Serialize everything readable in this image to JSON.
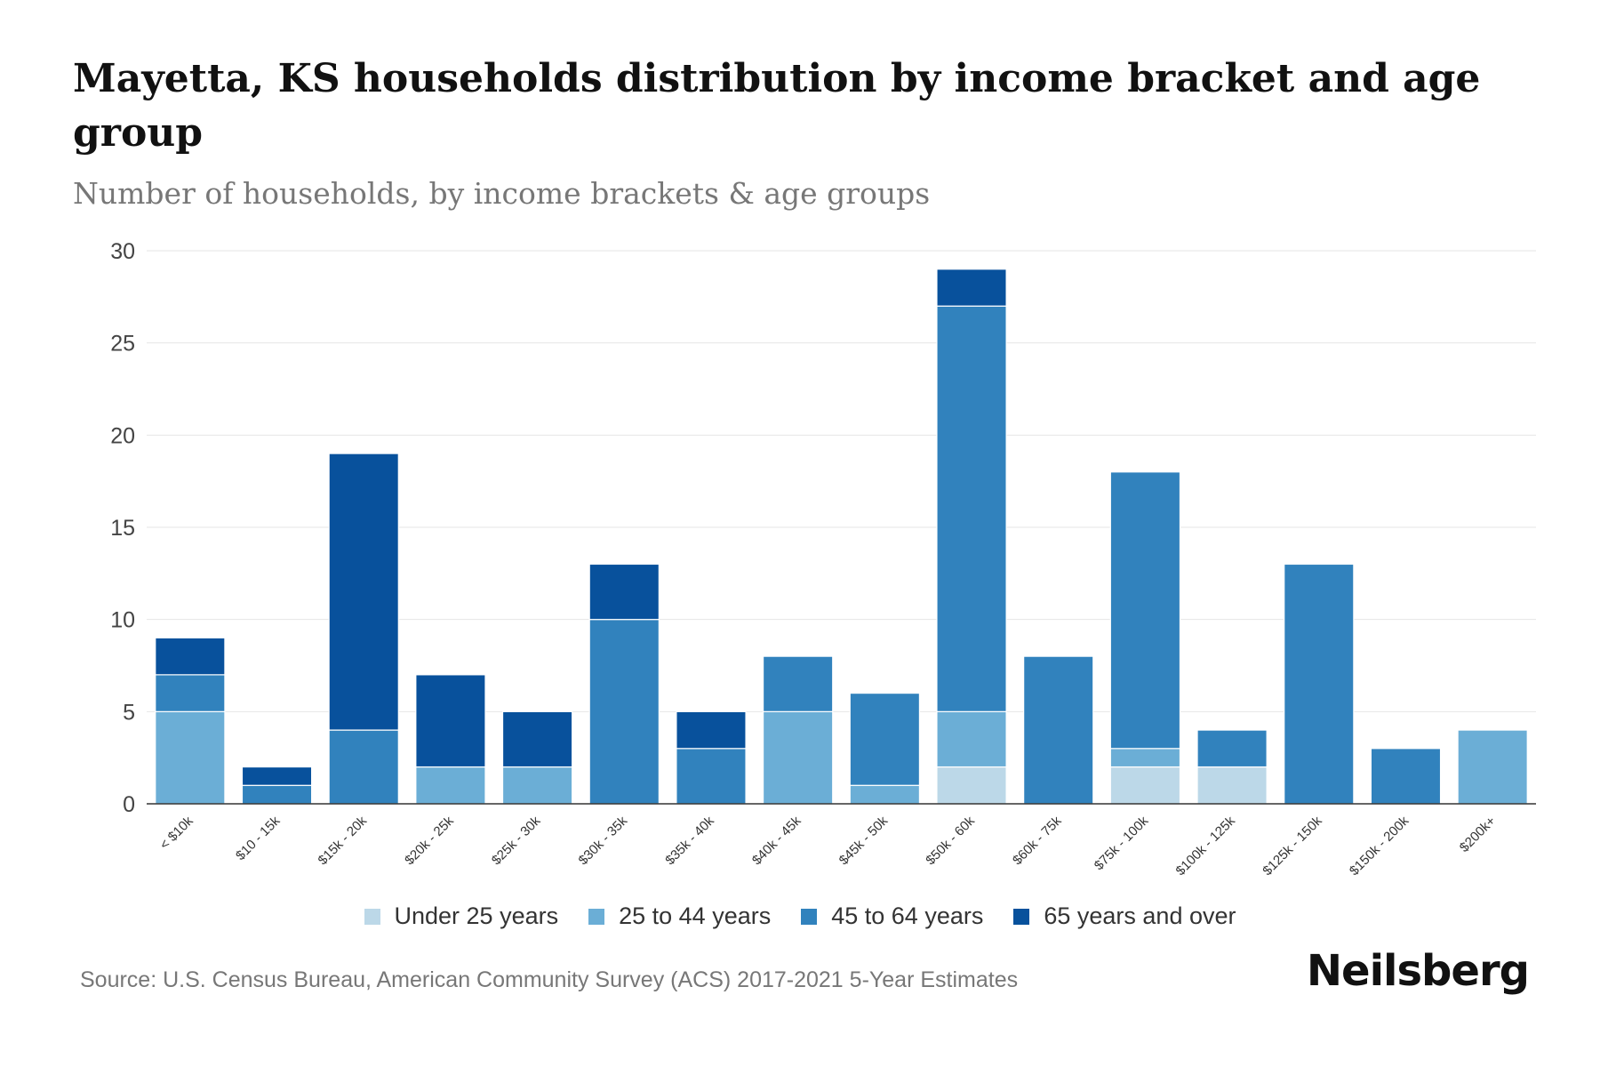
{
  "title": "Mayetta, KS households distribution by income bracket and age group",
  "subtitle": "Number of households, by income brackets & age groups",
  "source": "Source: U.S. Census Bureau, American Community Survey (ACS) 2017-2021 5-Year Estimates",
  "brand": "Neilsberg",
  "chart_data": {
    "type": "bar",
    "stacked": true,
    "title": "Mayetta, KS households distribution by income bracket and age group",
    "subtitle": "Number of households, by income brackets & age groups",
    "xlabel": "",
    "ylabel": "",
    "ylim": [
      0,
      30
    ],
    "yticks": [
      0,
      5,
      10,
      15,
      20,
      25,
      30
    ],
    "grid": true,
    "legend_position": "bottom",
    "categories": [
      "< $10k",
      "$10 - 15k",
      "$15k - 20k",
      "$20k - 25k",
      "$25k - 30k",
      "$30k - 35k",
      "$35k - 40k",
      "$40k - 45k",
      "$45k - 50k",
      "$50k - 60k",
      "$60k - 75k",
      "$75k - 100k",
      "$100k - 125k",
      "$125k - 150k",
      "$150k - 200k",
      "$200k+"
    ],
    "series": [
      {
        "name": "Under 25 years",
        "color": "#bcd8e8",
        "values": [
          0,
          0,
          0,
          0,
          0,
          0,
          0,
          0,
          0,
          2,
          0,
          2,
          2,
          0,
          0,
          0
        ]
      },
      {
        "name": "25 to 44 years",
        "color": "#6baed6",
        "values": [
          5,
          0,
          0,
          2,
          2,
          0,
          0,
          5,
          1,
          3,
          0,
          1,
          0,
          0,
          0,
          4
        ]
      },
      {
        "name": "45 to 64 years",
        "color": "#3182bd",
        "values": [
          2,
          1,
          4,
          0,
          0,
          10,
          3,
          3,
          5,
          22,
          8,
          15,
          2,
          13,
          3,
          0
        ]
      },
      {
        "name": "65 years and over",
        "color": "#08519c",
        "values": [
          2,
          1,
          15,
          5,
          3,
          3,
          2,
          0,
          0,
          2,
          0,
          0,
          0,
          0,
          0,
          0
        ]
      }
    ]
  }
}
